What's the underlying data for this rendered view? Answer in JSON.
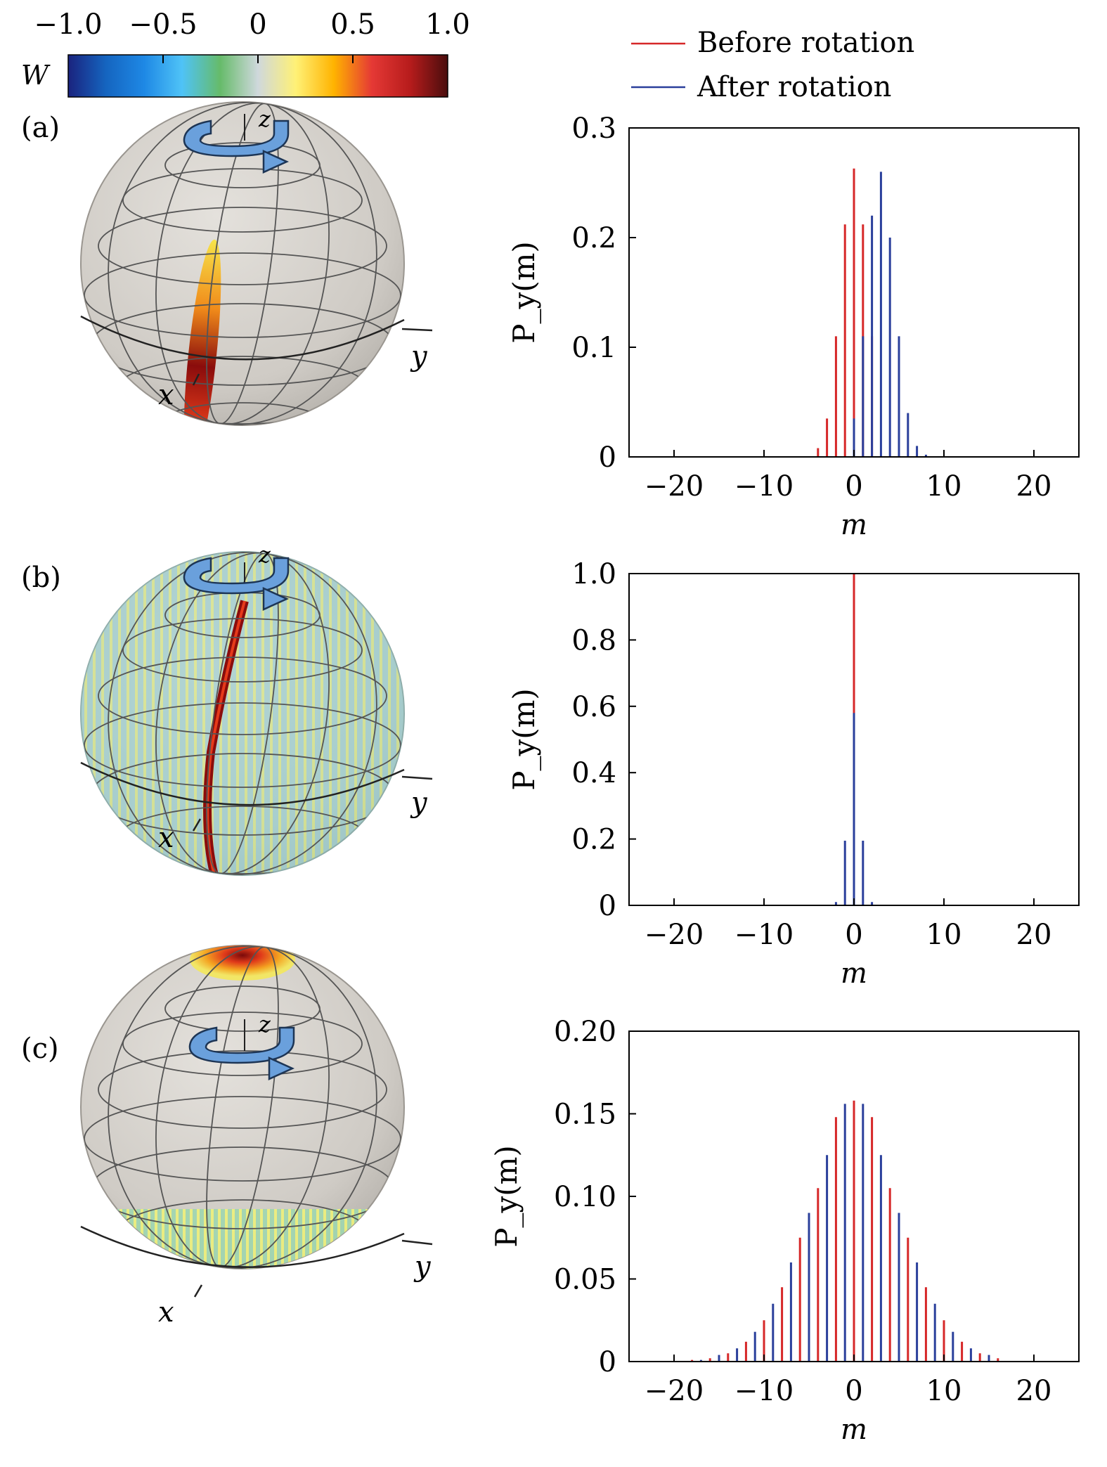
{
  "colorbar": {
    "symbol": "W",
    "ticks": [
      "−1.0",
      "−0.5",
      "0",
      "0.5",
      "1.0"
    ],
    "range": [
      -1.0,
      1.0
    ],
    "stops": [
      "#1a237e",
      "#1565c0",
      "#1e88e5",
      "#4fc3f7",
      "#66bb6a",
      "#cfd8dc",
      "#fff176",
      "#ffb300",
      "#e53935",
      "#b71c1c",
      "#4a0d0d"
    ]
  },
  "legend": [
    {
      "label": "Before rotation",
      "color": "#d62728"
    },
    {
      "label": "After rotation",
      "color": "#2a3f9b"
    }
  ],
  "rotation_color": "#6aa0dc",
  "spheres": [
    {
      "tag": "(a)",
      "axis_labels": [
        "z",
        "y",
        "x"
      ]
    },
    {
      "tag": "(b)",
      "axis_labels": [
        "z",
        "y",
        "x"
      ]
    },
    {
      "tag": "(c)",
      "axis_labels": [
        "z",
        "y",
        "x"
      ]
    }
  ],
  "chart_data": [
    {
      "type": "bar",
      "panel": "(a)",
      "xlabel": "m",
      "ylabel": "P_y(m)",
      "xlim": [
        -25,
        25
      ],
      "ylim": [
        0,
        0.3
      ],
      "xticks": [
        -20,
        -10,
        0,
        10,
        20
      ],
      "xtick_labels": [
        "−20",
        "−10",
        "0",
        "10",
        "20"
      ],
      "yticks": [
        0,
        0.1,
        0.2,
        0.3
      ],
      "ytick_labels": [
        "0",
        "0.1",
        "0.2",
        "0.3"
      ],
      "series": [
        {
          "name": "Before rotation",
          "color": "#d62728",
          "x": [
            -4,
            -3,
            -2,
            -1,
            0,
            1,
            2
          ],
          "values": [
            0.008,
            0.035,
            0.11,
            0.212,
            0.263,
            0.212,
            0.11
          ]
        },
        {
          "name": "After rotation",
          "color": "#2a3f9b",
          "x": [
            0,
            1,
            2,
            3,
            4,
            5,
            6,
            7,
            8
          ],
          "values": [
            0.035,
            0.11,
            0.22,
            0.26,
            0.2,
            0.11,
            0.04,
            0.01,
            0.002
          ]
        }
      ]
    },
    {
      "type": "bar",
      "panel": "(b)",
      "xlabel": "m",
      "ylabel": "P_y(m)",
      "xlim": [
        -25,
        25
      ],
      "ylim": [
        0,
        1.0
      ],
      "xticks": [
        -20,
        -10,
        0,
        10,
        20
      ],
      "xtick_labels": [
        "−20",
        "−10",
        "0",
        "10",
        "20"
      ],
      "yticks": [
        0,
        0.2,
        0.4,
        0.6,
        0.8,
        1.0
      ],
      "ytick_labels": [
        "0",
        "0.2",
        "0.4",
        "0.6",
        "0.8",
        "1.0"
      ],
      "series": [
        {
          "name": "Before rotation",
          "color": "#d62728",
          "x": [
            0
          ],
          "values": [
            1.0
          ]
        },
        {
          "name": "After rotation",
          "color": "#2a3f9b",
          "x": [
            -2,
            -1,
            0,
            1,
            2
          ],
          "values": [
            0.01,
            0.195,
            0.58,
            0.195,
            0.01
          ]
        }
      ]
    },
    {
      "type": "bar",
      "panel": "(c)",
      "xlabel": "m",
      "ylabel": "P_y(m)",
      "xlim": [
        -25,
        25
      ],
      "ylim": [
        0,
        0.2
      ],
      "xticks": [
        -20,
        -10,
        0,
        10,
        20
      ],
      "xtick_labels": [
        "−20",
        "−10",
        "0",
        "10",
        "20"
      ],
      "yticks": [
        0,
        0.05,
        0.1,
        0.15,
        0.2
      ],
      "ytick_labels": [
        "0",
        "0.05",
        "0.10",
        "0.15",
        "0.20"
      ],
      "series": [
        {
          "name": "Before rotation",
          "color": "#d62728",
          "x": [
            -18,
            -16,
            -14,
            -12,
            -10,
            -8,
            -6,
            -4,
            -2,
            0,
            2,
            4,
            6,
            8,
            10,
            12,
            14,
            16
          ],
          "values": [
            0.001,
            0.002,
            0.005,
            0.012,
            0.025,
            0.045,
            0.075,
            0.105,
            0.148,
            0.158,
            0.148,
            0.105,
            0.075,
            0.045,
            0.025,
            0.012,
            0.005,
            0.002
          ]
        },
        {
          "name": "After rotation",
          "color": "#2a3f9b",
          "x": [
            -17,
            -15,
            -13,
            -11,
            -9,
            -7,
            -5,
            -3,
            -1,
            1,
            3,
            5,
            7,
            9,
            11,
            13,
            15
          ],
          "values": [
            0.001,
            0.004,
            0.008,
            0.018,
            0.035,
            0.06,
            0.09,
            0.125,
            0.156,
            0.156,
            0.125,
            0.09,
            0.06,
            0.035,
            0.018,
            0.008,
            0.004
          ]
        }
      ]
    }
  ]
}
